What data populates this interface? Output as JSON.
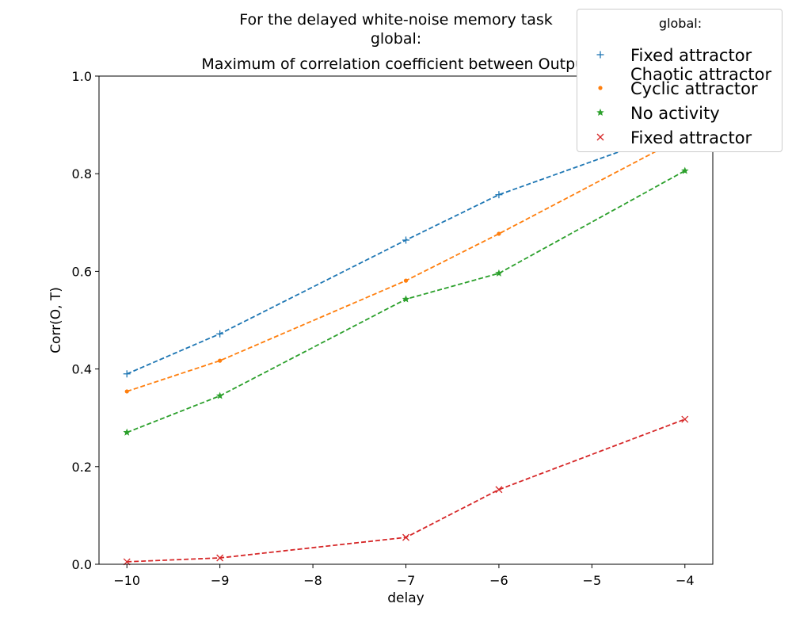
{
  "titles": {
    "line1": "For the delayed white-noise memory task",
    "line2": "global:",
    "line3": "Maximum of correlation coefficient between Output"
  },
  "chart_data": {
    "type": "line",
    "xlabel": "delay",
    "ylabel": "Corr(O, T)",
    "xlim": [
      -10.3,
      -3.7
    ],
    "ylim": [
      0,
      1
    ],
    "xticks": [
      -10,
      -9,
      -8,
      -7,
      -6,
      -5,
      -4
    ],
    "xtick_labels": [
      "−10",
      "−9",
      "−8",
      "−7",
      "−6",
      "−5",
      "−4"
    ],
    "yticks": [
      0.0,
      0.2,
      0.4,
      0.6,
      0.8,
      1.0
    ],
    "ytick_labels": [
      "0.0",
      "0.2",
      "0.4",
      "0.6",
      "0.8",
      "1.0"
    ],
    "grid": false,
    "legend_title": "global:",
    "legend_placement": "top-right",
    "series": [
      {
        "name": "Fixed attractor\nChaotic attractor",
        "color": "#1f77b4",
        "marker": "plus",
        "x": [
          -10,
          -9,
          -7,
          -6,
          -4
        ],
        "values": [
          0.39,
          0.472,
          0.664,
          0.757,
          0.893
        ]
      },
      {
        "name": "Cyclic attractor",
        "color": "#ff7f0e",
        "marker": "dot",
        "x": [
          -10,
          -9,
          -7,
          -6,
          -4
        ],
        "values": [
          0.354,
          0.417,
          0.581,
          0.677,
          0.877
        ]
      },
      {
        "name": "No activity",
        "color": "#2ca02c",
        "marker": "star",
        "x": [
          -10,
          -9,
          -7,
          -6,
          -4
        ],
        "values": [
          0.27,
          0.345,
          0.543,
          0.596,
          0.806
        ]
      },
      {
        "name": "Fixed attractor",
        "color": "#d62728",
        "marker": "x",
        "x": [
          -10,
          -9,
          -7,
          -6,
          -4
        ],
        "values": [
          0.005,
          0.013,
          0.055,
          0.153,
          0.297
        ]
      }
    ]
  }
}
